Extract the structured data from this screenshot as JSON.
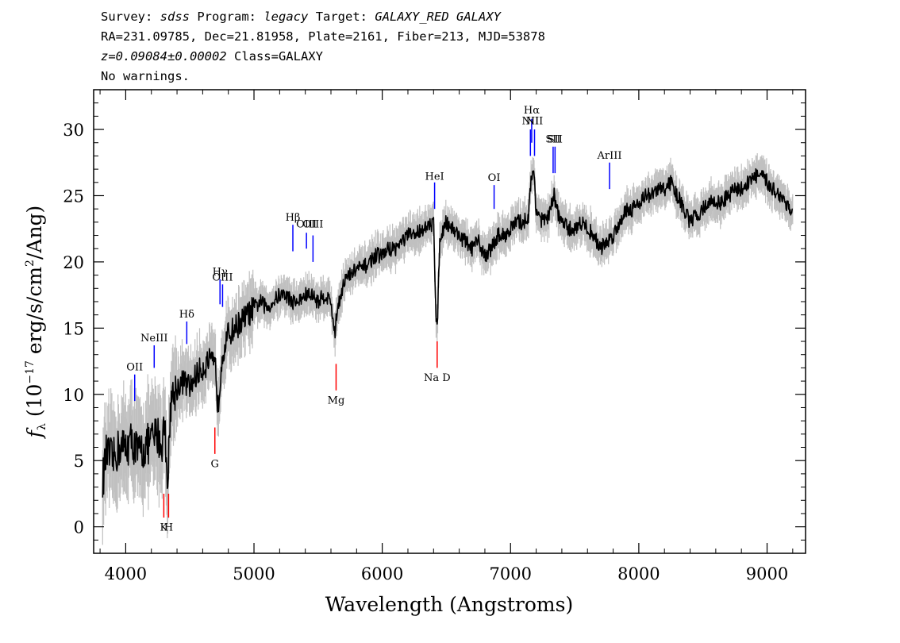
{
  "header": {
    "survey_label": "Survey:",
    "survey": "sdss",
    "program_label": "Program:",
    "program": "legacy",
    "target_label": "Target:",
    "target": "GALAXY_RED GALAXY",
    "line2": "RA=231.09785, Dec=21.81958, Plate=2161, Fiber=213, MJD=53878",
    "redshift": "z=0.09084±0.00002",
    "class": "Class=GALAXY",
    "warnings": "No warnings."
  },
  "chart_data": {
    "type": "line",
    "xlabel": "Wavelength (Angstroms)",
    "ylabel": "fλ (10^-17 erg/s/cm^2/Ang)",
    "ylabel_parts": {
      "f": "f",
      "sub": "λ",
      "pre": "(10",
      "exp1": "−17",
      "mid": " erg/s/cm",
      "exp2": "2",
      "post": "/Ang)"
    },
    "xlim": [
      3750,
      9300
    ],
    "ylim": [
      -2,
      33
    ],
    "xticks": [
      4000,
      5000,
      6000,
      7000,
      8000,
      9000
    ],
    "yticks": [
      0,
      5,
      10,
      15,
      20,
      25,
      30
    ],
    "grid": false,
    "series": [
      {
        "style": "flux",
        "color": "#000000",
        "x": [
          3820,
          3850,
          3900,
          3950,
          4000,
          4050,
          4100,
          4150,
          4200,
          4250,
          4280,
          4300,
          4330,
          4350,
          4400,
          4450,
          4500,
          4550,
          4600,
          4650,
          4700,
          4720,
          4750,
          4800,
          4850,
          4900,
          4950,
          5000,
          5050,
          5100,
          5150,
          5200,
          5250,
          5300,
          5350,
          5400,
          5450,
          5500,
          5550,
          5600,
          5630,
          5650,
          5700,
          5750,
          5800,
          5850,
          5900,
          5950,
          6000,
          6050,
          6100,
          6150,
          6200,
          6250,
          6300,
          6350,
          6400,
          6420,
          6430,
          6450,
          6500,
          6550,
          6600,
          6650,
          6700,
          6750,
          6800,
          6850,
          6900,
          6950,
          7000,
          7050,
          7100,
          7140,
          7160,
          7180,
          7200,
          7250,
          7300,
          7340,
          7360,
          7400,
          7450,
          7500,
          7550,
          7600,
          7650,
          7700,
          7750,
          7800,
          7850,
          7900,
          7950,
          8000,
          8050,
          8100,
          8150,
          8200,
          8250,
          8300,
          8350,
          8400,
          8450,
          8500,
          8550,
          8600,
          8650,
          8700,
          8750,
          8800,
          8850,
          8900,
          8950,
          9000,
          9050,
          9100,
          9150,
          9200
        ],
        "y": [
          3.5,
          5.5,
          5.0,
          6.0,
          6.0,
          6.5,
          5.5,
          6.0,
          6.5,
          7.0,
          6.0,
          8.0,
          3.5,
          9.5,
          10.5,
          11.0,
          10.5,
          11.5,
          12.0,
          12.5,
          12.0,
          9.0,
          13.0,
          14.5,
          15.0,
          15.5,
          16.0,
          16.5,
          17.0,
          16.5,
          17.0,
          17.5,
          17.5,
          17.0,
          17.0,
          17.5,
          17.5,
          17.0,
          17.5,
          17.0,
          14.5,
          16.5,
          18.5,
          19.0,
          19.5,
          19.5,
          20.0,
          20.5,
          20.5,
          21.0,
          21.0,
          21.5,
          22.0,
          22.0,
          22.5,
          22.5,
          23.0,
          16.0,
          15.5,
          22.0,
          23.0,
          22.5,
          22.0,
          21.5,
          21.0,
          21.5,
          20.5,
          21.0,
          22.0,
          22.0,
          22.5,
          23.0,
          23.0,
          23.5,
          26.0,
          27.0,
          24.0,
          23.0,
          23.5,
          25.0,
          24.0,
          23.0,
          22.5,
          22.5,
          23.0,
          22.5,
          22.0,
          21.0,
          21.5,
          22.0,
          23.0,
          24.0,
          24.0,
          24.5,
          25.0,
          25.0,
          25.5,
          25.5,
          26.0,
          25.0,
          24.0,
          23.0,
          23.5,
          24.0,
          24.5,
          24.5,
          24.5,
          25.0,
          25.5,
          25.5,
          26.0,
          26.5,
          26.5,
          26.0,
          25.5,
          25.0,
          24.5,
          23.5
        ]
      }
    ],
    "emission_lines": [
      {
        "label": "OII",
        "x": 4070,
        "y_bottom": 9.5,
        "y_top": 11.5,
        "label_y": 11.8
      },
      {
        "label": "NeIII",
        "x": 4222,
        "y_bottom": 12.0,
        "y_top": 13.7,
        "label_y": 14.0
      },
      {
        "label": "Hδ",
        "x": 4476,
        "y_bottom": 13.8,
        "y_top": 15.5,
        "label_y": 15.8
      },
      {
        "label": "Hγ",
        "x": 4735,
        "y_bottom": 16.8,
        "y_top": 18.7,
        "label_y": 19.0
      },
      {
        "label": "OIII",
        "x": 4755,
        "y_bottom": 16.6,
        "y_top": 18.3,
        "label_y": 18.6
      },
      {
        "label": "Hβ",
        "x": 5303,
        "y_bottom": 20.8,
        "y_top": 22.8,
        "label_y": 23.1
      },
      {
        "label": "OIII",
        "x": 5409,
        "y_bottom": 21.0,
        "y_top": 22.2,
        "label_y": 22.6
      },
      {
        "label": "OIII",
        "x": 5460,
        "y_bottom": 20.0,
        "y_top": 22.0,
        "label_y": 22.6
      },
      {
        "label": "HeI",
        "x": 6408,
        "y_bottom": 24.0,
        "y_top": 26.0,
        "label_y": 26.2
      },
      {
        "label": "OI",
        "x": 6872,
        "y_bottom": 24.0,
        "y_top": 25.8,
        "label_y": 26.1
      },
      {
        "label": "NII",
        "x": 7155,
        "y_bottom": 28.0,
        "y_top": 30.0,
        "label_y": 30.4
      },
      {
        "label": "Hα",
        "x": 7165,
        "y_bottom": 29.0,
        "y_top": 30.8,
        "label_y": 31.2
      },
      {
        "label": "NII",
        "x": 7187,
        "y_bottom": 28.0,
        "y_top": 30.0,
        "label_y": 30.4
      },
      {
        "label": "SII",
        "x": 7332,
        "y_bottom": 26.7,
        "y_top": 28.7,
        "label_y": 29.0
      },
      {
        "label": "SII",
        "x": 7347,
        "y_bottom": 26.7,
        "y_top": 28.7,
        "label_y": 29.0
      },
      {
        "label": "ArIII",
        "x": 7772,
        "y_bottom": 25.5,
        "y_top": 27.5,
        "label_y": 27.8
      }
    ],
    "absorption_lines": [
      {
        "label": "K",
        "x": 4297,
        "y_bottom": 0.7,
        "y_top": 2.5,
        "label_y": -0.3
      },
      {
        "label": "H",
        "x": 4334,
        "y_bottom": 0.7,
        "y_top": 2.5,
        "label_y": -0.3
      },
      {
        "label": "G",
        "x": 4695,
        "y_bottom": 5.5,
        "y_top": 7.5,
        "label_y": 4.5
      },
      {
        "label": "Mg",
        "x": 5640,
        "y_bottom": 10.3,
        "y_top": 12.3,
        "label_y": 9.3
      },
      {
        "label": "Na D",
        "x": 6428,
        "y_bottom": 12.0,
        "y_top": 14.0,
        "label_y": 11.0
      }
    ],
    "colors": {
      "flux": "#000000",
      "error": "#c0c0c0",
      "emission": "#0000ff",
      "absorption": "#ff0000"
    }
  }
}
